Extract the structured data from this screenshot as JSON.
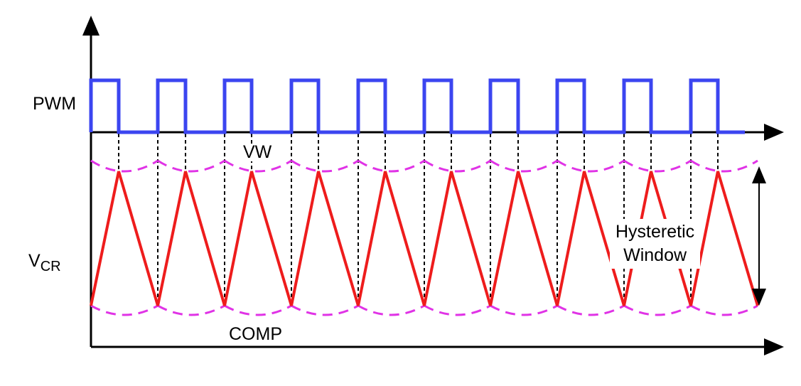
{
  "labels": {
    "pwm": "PWM",
    "vcr_main": "V",
    "vcr_sub": "CR",
    "vw": "VW",
    "comp": "COMP",
    "hysteretic_line1": "Hysteretic",
    "hysteretic_line2": "Window"
  },
  "colors": {
    "pwm": "#3b45f0",
    "vcr": "#ee1c1c",
    "window": "#e033e6",
    "axis": "#000000",
    "guide": "#000000"
  },
  "waveform": {
    "pulse_count": 10,
    "description_units": "relative"
  }
}
